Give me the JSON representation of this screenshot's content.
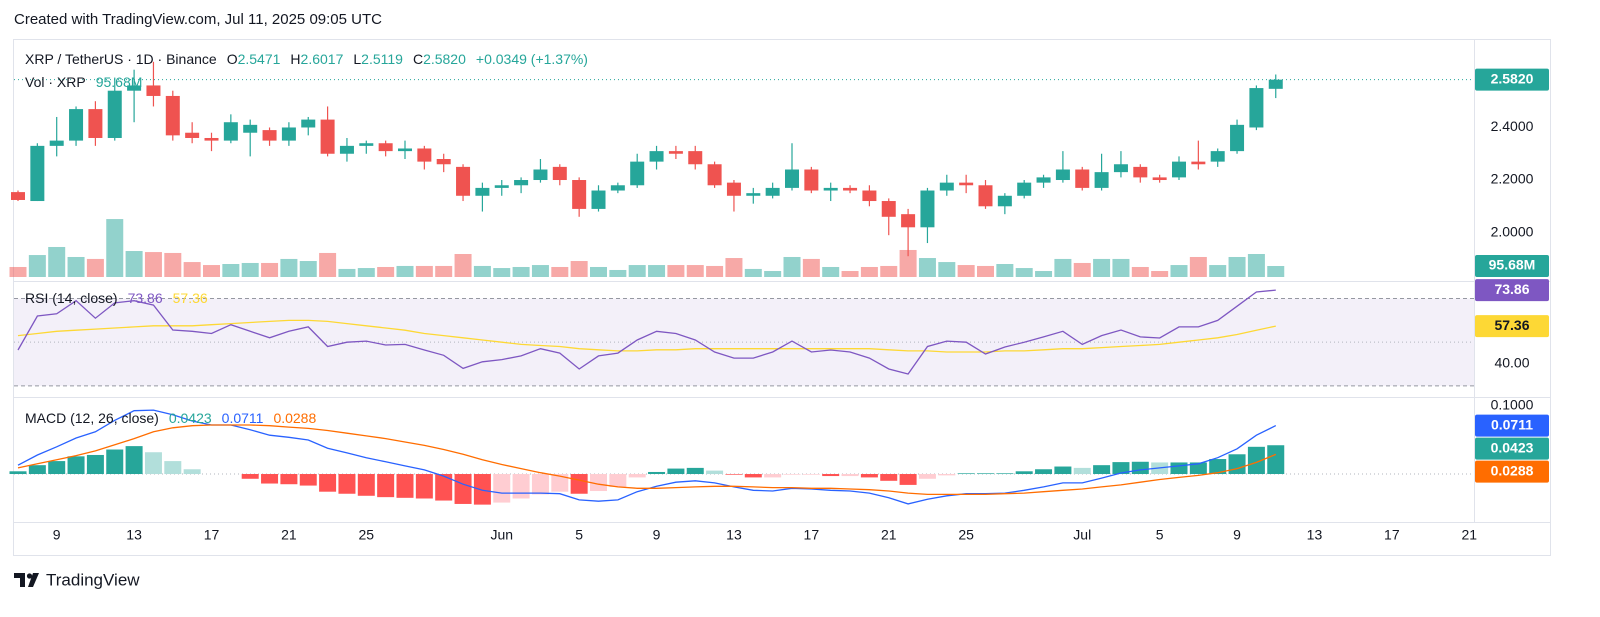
{
  "header": {
    "text": "Created with TradingView.com, Jul 11, 2025 09:05 UTC"
  },
  "footer": {
    "brand": "TradingView"
  },
  "chart_data": {
    "type": "candlestick",
    "symbol": "XRP / TetherUS · 1D · Binance",
    "legend_labels": [
      "O",
      "H",
      "L",
      "C"
    ],
    "change": "+0.0349 (+1.37%)",
    "last_close_label": "2.5820",
    "up_color": "#26a69a",
    "down_color": "#ef5350",
    "x": [
      "May 7",
      "May 8",
      "May 9",
      "May 10",
      "May 11",
      "May 12",
      "May 13",
      "May 14",
      "May 15",
      "May 16",
      "May 17",
      "May 18",
      "May 19",
      "May 20",
      "May 21",
      "May 22",
      "May 23",
      "May 24",
      "May 25",
      "May 26",
      "May 27",
      "May 28",
      "May 29",
      "May 30",
      "May 31",
      "Jun 1",
      "Jun 2",
      "Jun 3",
      "Jun 4",
      "Jun 5",
      "Jun 6",
      "Jun 7",
      "Jun 8",
      "Jun 9",
      "Jun 10",
      "Jun 11",
      "Jun 12",
      "Jun 13",
      "Jun 14",
      "Jun 15",
      "Jun 16",
      "Jun 17",
      "Jun 18",
      "Jun 19",
      "Jun 20",
      "Jun 21",
      "Jun 22",
      "Jun 23",
      "Jun 24",
      "Jun 25",
      "Jun 26",
      "Jun 27",
      "Jun 28",
      "Jun 29",
      "Jun 30",
      "Jul 1",
      "Jul 2",
      "Jul 3",
      "Jul 4",
      "Jul 5",
      "Jul 6",
      "Jul 7",
      "Jul 8",
      "Jul 9",
      "Jul 10",
      "Jul 11"
    ],
    "open": [
      2.154,
      2.12,
      2.33,
      2.35,
      2.47,
      2.36,
      2.54,
      2.56,
      2.52,
      2.38,
      2.36,
      2.35,
      2.38,
      2.39,
      2.35,
      2.4,
      2.43,
      2.3,
      2.33,
      2.34,
      2.31,
      2.32,
      2.28,
      2.25,
      2.14,
      2.17,
      2.18,
      2.2,
      2.25,
      2.2,
      2.09,
      2.16,
      2.18,
      2.27,
      2.31,
      2.31,
      2.26,
      2.19,
      2.14,
      2.14,
      2.17,
      2.24,
      2.16,
      2.17,
      2.16,
      2.12,
      2.07,
      2.02,
      2.16,
      2.19,
      2.18,
      2.1,
      2.14,
      2.19,
      2.2,
      2.24,
      2.17,
      2.23,
      2.25,
      2.21,
      2.21,
      2.27,
      2.27,
      2.31,
      2.4,
      2.5471
    ],
    "high": [
      2.16,
      2.34,
      2.44,
      2.48,
      2.5,
      2.59,
      2.62,
      2.65,
      2.54,
      2.42,
      2.38,
      2.45,
      2.43,
      2.4,
      2.42,
      2.44,
      2.48,
      2.36,
      2.35,
      2.35,
      2.35,
      2.33,
      2.3,
      2.26,
      2.19,
      2.2,
      2.21,
      2.28,
      2.26,
      2.21,
      2.18,
      2.19,
      2.3,
      2.33,
      2.33,
      2.33,
      2.27,
      2.2,
      2.17,
      2.19,
      2.34,
      2.25,
      2.19,
      2.18,
      2.18,
      2.13,
      2.09,
      2.17,
      2.22,
      2.22,
      2.2,
      2.15,
      2.2,
      2.22,
      2.31,
      2.25,
      2.3,
      2.31,
      2.26,
      2.22,
      2.29,
      2.35,
      2.32,
      2.43,
      2.56,
      2.6017
    ],
    "low": [
      2.12,
      2.12,
      2.29,
      2.33,
      2.33,
      2.35,
      2.42,
      2.48,
      2.35,
      2.34,
      2.31,
      2.34,
      2.29,
      2.33,
      2.33,
      2.37,
      2.29,
      2.27,
      2.3,
      2.29,
      2.28,
      2.24,
      2.23,
      2.12,
      2.08,
      2.14,
      2.15,
      2.19,
      2.18,
      2.06,
      2.08,
      2.15,
      2.17,
      2.24,
      2.28,
      2.24,
      2.17,
      2.08,
      2.11,
      2.13,
      2.16,
      2.15,
      2.12,
      2.15,
      2.1,
      1.99,
      1.91,
      1.96,
      2.14,
      2.15,
      2.09,
      2.07,
      2.13,
      2.17,
      2.19,
      2.16,
      2.16,
      2.21,
      2.19,
      2.19,
      2.2,
      2.24,
      2.25,
      2.3,
      2.39,
      2.5119
    ],
    "close": [
      2.124,
      2.33,
      2.35,
      2.47,
      2.36,
      2.54,
      2.56,
      2.52,
      2.37,
      2.36,
      2.35,
      2.42,
      2.41,
      2.35,
      2.4,
      2.43,
      2.3,
      2.33,
      2.34,
      2.31,
      2.32,
      2.27,
      2.26,
      2.14,
      2.17,
      2.18,
      2.2,
      2.24,
      2.2,
      2.09,
      2.16,
      2.18,
      2.27,
      2.31,
      2.3,
      2.26,
      2.18,
      2.14,
      2.15,
      2.17,
      2.24,
      2.16,
      2.17,
      2.16,
      2.12,
      2.06,
      2.02,
      2.16,
      2.19,
      2.18,
      2.1,
      2.14,
      2.19,
      2.21,
      2.24,
      2.17,
      2.23,
      2.26,
      2.21,
      2.2,
      2.27,
      2.26,
      2.31,
      2.41,
      2.55,
      2.582
    ],
    "ylim": [
      1.827,
      2.733
    ],
    "yticks": [
      {
        "value": 2,
        "label": "2.0000"
      },
      {
        "value": 2.2,
        "label": "2.2000"
      },
      {
        "value": 2.4,
        "label": "2.4000"
      }
    ],
    "xticks": [
      {
        "value": "May 9",
        "label": "9"
      },
      {
        "value": "May 13",
        "label": "13"
      },
      {
        "value": "May 17",
        "label": "17"
      },
      {
        "value": "May 21",
        "label": "21"
      },
      {
        "value": "May 25",
        "label": "25"
      },
      {
        "value": "Jun 1",
        "label": "Jun"
      },
      {
        "value": "Jun 5",
        "label": "5"
      },
      {
        "value": "Jun 9",
        "label": "9"
      },
      {
        "value": "Jun 13",
        "label": "13"
      },
      {
        "value": "Jun 17",
        "label": "17"
      },
      {
        "value": "Jun 21",
        "label": "21"
      },
      {
        "value": "Jun 25",
        "label": "25"
      },
      {
        "value": "Jul 1",
        "label": "Jul"
      },
      {
        "value": "Jul 5",
        "label": "5"
      },
      {
        "value": "Jul 9",
        "label": "9"
      },
      {
        "value": "Jul 13",
        "label": "13"
      },
      {
        "value": "Jul 17",
        "label": "17"
      },
      {
        "value": "Jul 21",
        "label": "21"
      }
    ],
    "grid": false,
    "volume": {
      "name": "Vol · XRP",
      "last_label": "95.68M",
      "ylim": [
        0,
        2070
      ],
      "up_color": "rgba(38,166,154,0.5)",
      "down_color": "rgba(239,83,80,0.5)",
      "values": [
        87,
        191,
        261,
        174,
        157,
        504,
        226,
        217,
        209,
        130,
        104,
        113,
        122,
        122,
        157,
        139,
        209,
        70,
        78,
        87,
        96,
        96,
        96,
        200,
        96,
        78,
        87,
        104,
        87,
        139,
        87,
        61,
        104,
        104,
        104,
        104,
        96,
        165,
        70,
        52,
        174,
        157,
        87,
        52,
        87,
        96,
        235,
        165,
        130,
        104,
        96,
        113,
        78,
        52,
        157,
        122,
        157,
        157,
        87,
        52,
        104,
        174,
        104,
        174,
        200,
        95.68
      ]
    },
    "rsi": {
      "name": "RSI (14, close)",
      "ylim": [
        25.8,
        76.2
      ],
      "yticks": [
        {
          "value": 40,
          "label": "40.00"
        }
      ],
      "bands": [
        30,
        70
      ],
      "midline": 50,
      "band_color": "rgba(126,87,194,0.09)",
      "series": [
        {
          "color": "#7e57c2",
          "text_color": "#ffffff",
          "values": [
            46.4,
            62,
            63,
            69,
            61,
            68,
            69,
            67,
            55.6,
            55,
            54,
            58,
            55,
            52,
            55,
            57,
            48,
            50,
            50.5,
            48.7,
            49,
            46.4,
            44,
            38,
            41,
            42,
            43.7,
            47,
            45,
            37.7,
            43.7,
            45,
            51,
            55,
            54,
            51,
            45.5,
            42.7,
            42.7,
            45.5,
            50.5,
            45.5,
            46.4,
            45.5,
            42.7,
            37.7,
            35.4,
            48,
            50.5,
            50,
            44.6,
            47.8,
            50,
            52.4,
            55,
            49,
            53,
            55.6,
            52.4,
            51.9,
            57,
            57,
            60,
            66.5,
            73,
            73.86
          ]
        },
        {
          "color": "#fdd835",
          "text_color": "#131722",
          "values": [
            53,
            54,
            55,
            55.5,
            56,
            56.5,
            57,
            57.5,
            57.5,
            57.5,
            58,
            58.5,
            59,
            59.5,
            60,
            60,
            59.5,
            58.5,
            57.5,
            56.5,
            55.5,
            54,
            53,
            52,
            51,
            50,
            49,
            48.5,
            48,
            47,
            46.5,
            46,
            46,
            46.5,
            46.5,
            47,
            47,
            47,
            47,
            47,
            47,
            47,
            47,
            47,
            47,
            46.5,
            46,
            46,
            45.5,
            45.5,
            45.5,
            46,
            46,
            46.5,
            47,
            47,
            47.5,
            48,
            48.5,
            49,
            50,
            51,
            52,
            53.5,
            55.5,
            57.36
          ]
        }
      ]
    },
    "macd": {
      "name": "MACD (12, 26, close)",
      "ylim": [
        -0.0676,
        0.1088
      ],
      "yticks": [
        {
          "value": 0.1,
          "label": "0.1000"
        }
      ],
      "histogram": {
        "color": "#26a69a",
        "colors": [
          "#26a69a",
          "#b2dfdb",
          "#ff5252",
          "#ffcdd2"
        ],
        "values": [
          0.004,
          0.013,
          0.019,
          0.026,
          0.028,
          0.036,
          0.041,
          0.032,
          0.019,
          0.007,
          0.0,
          0.0,
          -0.007,
          -0.014,
          -0.015,
          -0.017,
          -0.026,
          -0.029,
          -0.032,
          -0.034,
          -0.035,
          -0.036,
          -0.039,
          -0.044,
          -0.045,
          -0.042,
          -0.036,
          -0.03,
          -0.026,
          -0.029,
          -0.025,
          -0.019,
          -0.005,
          0.003,
          0.008,
          0.009,
          0.005,
          -0.001,
          -0.005,
          -0.005,
          -0.001,
          -0.001,
          -0.003,
          -0.003,
          -0.005,
          -0.01,
          -0.016,
          -0.007,
          -0.002,
          0.001,
          0.001,
          0.001,
          0.004,
          0.007,
          0.011,
          0.009,
          0.013,
          0.0175,
          0.018,
          0.017,
          0.017,
          0.017,
          0.022,
          0.029,
          0.04,
          0.0423
        ]
      },
      "series": [
        {
          "color": "#2962ff",
          "values": [
            0.013,
            0.028,
            0.04,
            0.053,
            0.062,
            0.079,
            0.093,
            0.094,
            0.087,
            0.078,
            0.072,
            0.072,
            0.065,
            0.057,
            0.054,
            0.05,
            0.038,
            0.031,
            0.024,
            0.018,
            0.012,
            0.006,
            -0.003,
            -0.015,
            -0.024,
            -0.028,
            -0.028,
            -0.028,
            -0.029,
            -0.038,
            -0.04,
            -0.038,
            -0.026,
            -0.018,
            -0.012,
            -0.01,
            -0.013,
            -0.019,
            -0.024,
            -0.025,
            -0.021,
            -0.022,
            -0.024,
            -0.025,
            -0.028,
            -0.035,
            -0.044,
            -0.037,
            -0.032,
            -0.029,
            -0.029,
            -0.028,
            -0.024,
            -0.019,
            -0.013,
            -0.013,
            -0.006,
            0.0015,
            0.006,
            0.009,
            0.012,
            0.015,
            0.024,
            0.037,
            0.057,
            0.0711
          ]
        },
        {
          "color": "#ff6d00",
          "values": [
            0.009,
            0.015,
            0.021,
            0.027,
            0.034,
            0.043,
            0.052,
            0.062,
            0.068,
            0.071,
            0.072,
            0.072,
            0.072,
            0.071,
            0.069,
            0.067,
            0.064,
            0.06,
            0.056,
            0.052,
            0.047,
            0.042,
            0.036,
            0.029,
            0.021,
            0.014,
            0.008,
            0.002,
            -0.003,
            -0.009,
            -0.015,
            -0.019,
            -0.021,
            -0.021,
            -0.02,
            -0.019,
            -0.018,
            -0.018,
            -0.019,
            -0.02,
            -0.02,
            -0.021,
            -0.021,
            -0.022,
            -0.023,
            -0.025,
            -0.028,
            -0.03,
            -0.03,
            -0.03,
            -0.03,
            -0.029,
            -0.028,
            -0.026,
            -0.024,
            -0.022,
            -0.019,
            -0.016,
            -0.012,
            -0.008,
            -0.005,
            -0.002,
            0.002,
            0.008,
            0.017,
            0.0288
          ]
        }
      ]
    }
  }
}
